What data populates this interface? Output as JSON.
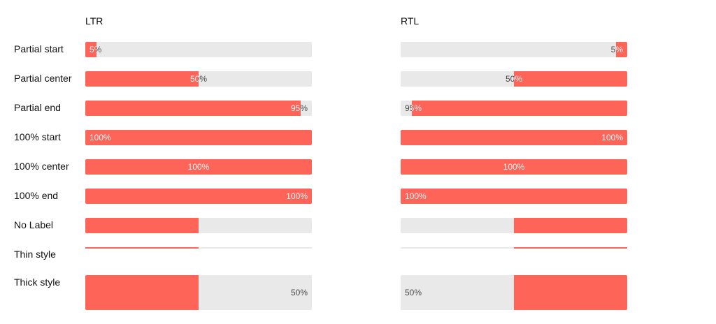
{
  "headers": {
    "ltr": "LTR",
    "rtl": "RTL"
  },
  "colors": {
    "fill": "#ff6459",
    "track": "#e9e9e9",
    "label_on_track": "#4a4a4a",
    "label_on_fill": "#ffffff"
  },
  "rows": [
    {
      "label": "Partial start",
      "value": 0.05,
      "text": "5%",
      "align": "start",
      "style": "normal"
    },
    {
      "label": "Partial center",
      "value": 0.5,
      "text": "50%",
      "align": "center",
      "style": "normal"
    },
    {
      "label": "Partial end",
      "value": 0.95,
      "text": "95%",
      "align": "end",
      "style": "normal"
    },
    {
      "label": "100% start",
      "value": 1.0,
      "text": "100%",
      "align": "start",
      "style": "normal"
    },
    {
      "label": "100% center",
      "value": 1.0,
      "text": "100%",
      "align": "center",
      "style": "normal"
    },
    {
      "label": "100% end",
      "value": 1.0,
      "text": "100%",
      "align": "end",
      "style": "normal"
    },
    {
      "label": "No Label",
      "value": 0.5,
      "text": "",
      "align": "none",
      "style": "normal"
    },
    {
      "label": "Thin style",
      "value": 0.5,
      "text": "",
      "align": "none",
      "style": "thin"
    },
    {
      "label": "Thick style",
      "value": 0.5,
      "text": "50%",
      "align": "end",
      "style": "thick"
    }
  ]
}
